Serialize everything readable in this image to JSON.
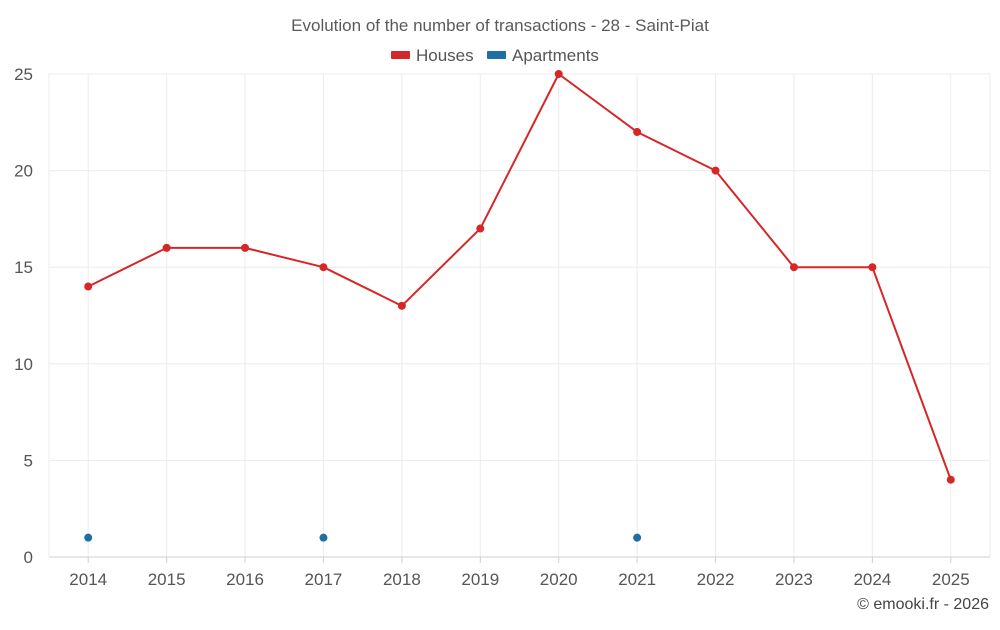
{
  "chart_data": {
    "type": "line",
    "title": "Evolution of the number of transactions - 28 - Saint-Piat",
    "categories": [
      "2014",
      "2015",
      "2016",
      "2017",
      "2018",
      "2019",
      "2020",
      "2021",
      "2022",
      "2023",
      "2024",
      "2025"
    ],
    "series": [
      {
        "name": "Houses",
        "color": "#d62728",
        "values": [
          14,
          16,
          16,
          15,
          13,
          17,
          25,
          22,
          20,
          15,
          15,
          4
        ],
        "line": true
      },
      {
        "name": "Apartments",
        "color": "#1f6fa3",
        "values": [
          1,
          null,
          null,
          1,
          null,
          null,
          null,
          1,
          null,
          null,
          null,
          null
        ],
        "line": false
      }
    ],
    "ylim": [
      0,
      25
    ],
    "yticks": [
      0,
      5,
      10,
      15,
      20,
      25
    ],
    "xlabel": "",
    "ylabel": "",
    "grid": true,
    "legend_position": "top-center"
  },
  "credit": "© emooki.fr - 2026"
}
